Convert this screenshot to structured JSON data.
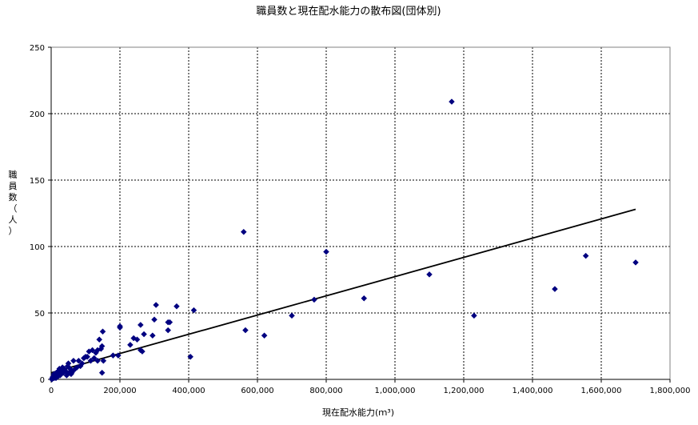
{
  "chart_data": {
    "type": "scatter",
    "title": "職員数と現在配水能力の散布図(団体別)",
    "xlabel": "現在配水能力(ｍ³)",
    "ylabel": "職員数（人）",
    "xlim": [
      0,
      1800000
    ],
    "ylim": [
      0,
      250
    ],
    "x_ticks": [
      0,
      200000,
      400000,
      600000,
      800000,
      1000000,
      1200000,
      1400000,
      1600000,
      1800000
    ],
    "x_tick_labels": [
      "0",
      "200,000",
      "400,000",
      "600,000",
      "800,000",
      "1,000,000",
      "1,200,000",
      "1,400,000",
      "1,600,000",
      "1,800,000"
    ],
    "y_ticks": [
      0,
      50,
      100,
      150,
      200,
      250
    ],
    "y_tick_labels": [
      "0",
      "50",
      "100",
      "150",
      "200",
      "250"
    ],
    "grid": true,
    "marker_color": "#000080",
    "trendline_color": "#000000",
    "points": [
      [
        1165000,
        209
      ],
      [
        560000,
        111
      ],
      [
        800000,
        96
      ],
      [
        1700000,
        88
      ],
      [
        1555000,
        93
      ],
      [
        1100000,
        79
      ],
      [
        1465000,
        68
      ],
      [
        910000,
        61
      ],
      [
        765000,
        60
      ],
      [
        1230000,
        48
      ],
      [
        700000,
        48
      ],
      [
        565000,
        37
      ],
      [
        620000,
        33
      ],
      [
        415000,
        52
      ],
      [
        405000,
        17
      ],
      [
        365000,
        55
      ],
      [
        340000,
        43
      ],
      [
        340000,
        37
      ],
      [
        345000,
        43
      ],
      [
        305000,
        56
      ],
      [
        300000,
        45
      ],
      [
        295000,
        33
      ],
      [
        270000,
        34
      ],
      [
        260000,
        22
      ],
      [
        265000,
        21
      ],
      [
        260000,
        41
      ],
      [
        250000,
        30
      ],
      [
        240000,
        31
      ],
      [
        230000,
        26
      ],
      [
        200000,
        40
      ],
      [
        200000,
        39
      ],
      [
        195000,
        18
      ],
      [
        180000,
        18
      ],
      [
        150000,
        36
      ],
      [
        148000,
        25
      ],
      [
        145000,
        23
      ],
      [
        140000,
        30
      ],
      [
        135000,
        22
      ],
      [
        130000,
        20
      ],
      [
        125000,
        16
      ],
      [
        120000,
        22
      ],
      [
        115000,
        14
      ],
      [
        110000,
        21
      ],
      [
        105000,
        17
      ],
      [
        100000,
        17
      ],
      [
        95000,
        16
      ],
      [
        90000,
        12
      ],
      [
        85000,
        10
      ],
      [
        80000,
        14
      ],
      [
        75000,
        9
      ],
      [
        70000,
        8
      ],
      [
        65000,
        14
      ],
      [
        62000,
        6
      ],
      [
        60000,
        5
      ],
      [
        58000,
        4
      ],
      [
        55000,
        8
      ],
      [
        52000,
        5
      ],
      [
        50000,
        12
      ],
      [
        48000,
        10
      ],
      [
        45000,
        3
      ],
      [
        42000,
        6
      ],
      [
        40000,
        7
      ],
      [
        38000,
        8
      ],
      [
        35000,
        5
      ],
      [
        33000,
        9
      ],
      [
        30000,
        6
      ],
      [
        28000,
        4
      ],
      [
        26000,
        3
      ],
      [
        25000,
        7
      ],
      [
        24000,
        8
      ],
      [
        22000,
        5
      ],
      [
        20000,
        6
      ],
      [
        19000,
        2
      ],
      [
        18000,
        4
      ],
      [
        16000,
        3
      ],
      [
        15000,
        5
      ],
      [
        14000,
        1
      ],
      [
        12000,
        2
      ],
      [
        10000,
        3
      ],
      [
        9000,
        1
      ],
      [
        8000,
        4
      ],
      [
        7000,
        2
      ],
      [
        6000,
        1
      ],
      [
        5000,
        2
      ],
      [
        4000,
        1
      ],
      [
        3000,
        1
      ],
      [
        2000,
        0
      ],
      [
        148000,
        5
      ],
      [
        152000,
        14
      ],
      [
        135000,
        14
      ]
    ],
    "trendline": {
      "x": [
        0,
        1700000
      ],
      "y": [
        5,
        128
      ]
    }
  }
}
